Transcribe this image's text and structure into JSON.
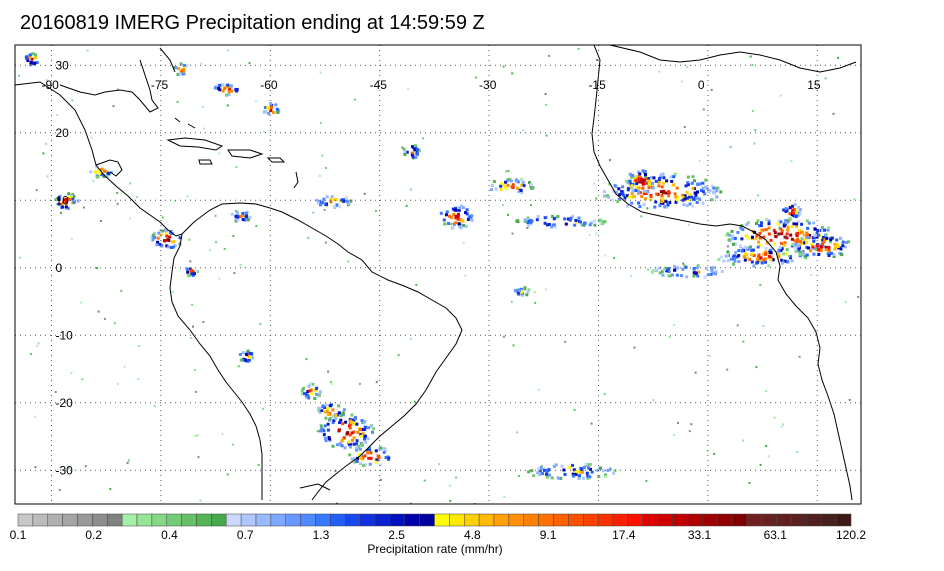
{
  "title": "20160819 IMERG Precipitation ending at 14:59:59 Z",
  "map": {
    "lon_labels": [
      "-90",
      "-75",
      "-60",
      "-45",
      "-30",
      "-15",
      "0",
      "15"
    ],
    "lat_labels": [
      "30",
      "20",
      "10",
      "0",
      "-10",
      "-20",
      "-30"
    ],
    "lon_range": [
      -95,
      21
    ],
    "lat_range": [
      -35,
      33
    ],
    "grid": "dotted",
    "coastline_color": "#000000"
  },
  "colorbar": {
    "tick_labels": [
      "0.1",
      "0.2",
      "0.4",
      "0.7",
      "1.3",
      "2.5",
      "4.8",
      "9.1",
      "17.4",
      "33.1",
      "63.1",
      "120.2"
    ],
    "unit_label": "Precipitation rate (mm/hr)",
    "colors": [
      "#c8c8c8",
      "#bcbcbc",
      "#b0b0b0",
      "#a4a4a4",
      "#989898",
      "#8c8c8c",
      "#808080",
      "#a6f0a6",
      "#96e496",
      "#86d886",
      "#76cc76",
      "#66c066",
      "#56b456",
      "#46a846",
      "#c8d8ff",
      "#b0c8ff",
      "#98b8ff",
      "#80a8ff",
      "#6898ff",
      "#5088ff",
      "#3878ff",
      "#2060ff",
      "#1848f0",
      "#1030e0",
      "#0820d0",
      "#0010c0",
      "#0000b0",
      "#0000a0",
      "#ffff00",
      "#ffe800",
      "#ffd000",
      "#ffb800",
      "#ffa000",
      "#ff9000",
      "#ff8000",
      "#ff7000",
      "#ff6000",
      "#ff5000",
      "#ff4000",
      "#ff3000",
      "#ff2000",
      "#ff1000",
      "#e00000",
      "#d00000",
      "#c00000",
      "#b00000",
      "#a00000",
      "#900000",
      "#800000",
      "#702020",
      "#682020",
      "#602020",
      "#582020",
      "#502020",
      "#482020",
      "#401818"
    ]
  }
}
